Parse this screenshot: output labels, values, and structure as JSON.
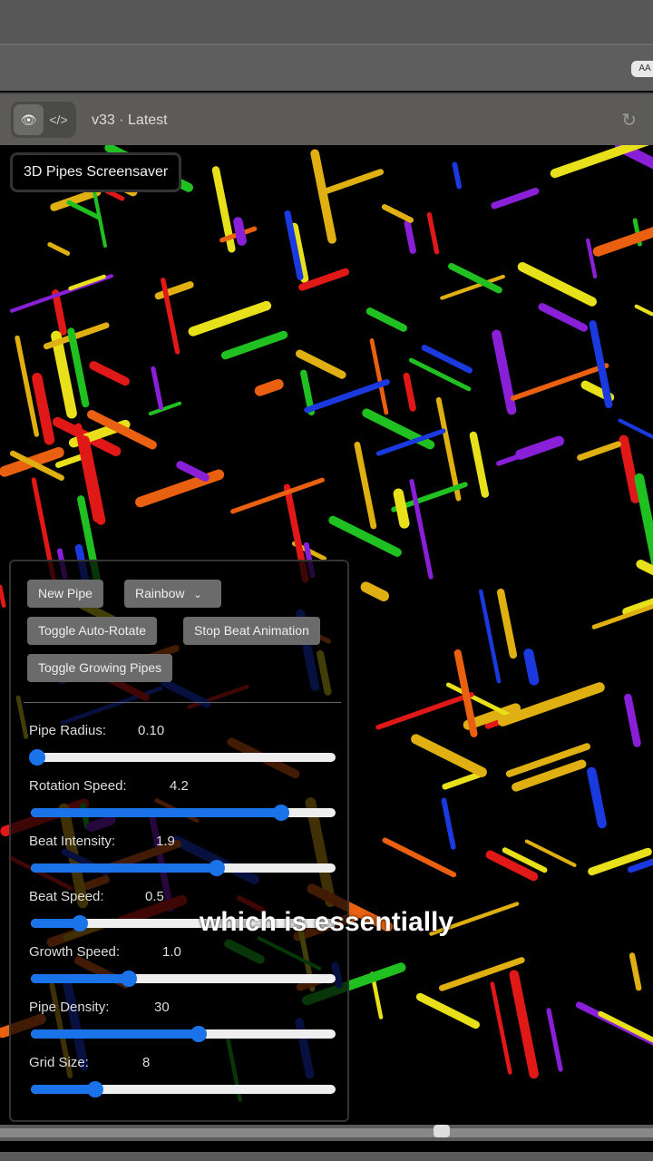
{
  "browser": {
    "badge": "AA"
  },
  "toolbar": {
    "preview_icon": "eye-icon",
    "code_icon": "code-icon",
    "version": "v33 · Latest",
    "refresh_icon": "refresh-icon"
  },
  "app": {
    "title": "3D Pipes Screensaver",
    "buttons": {
      "new_pipe": "New Pipe",
      "color_mode": "Rainbow",
      "toggle_auto_rotate": "Toggle Auto-Rotate",
      "stop_beat": "Stop Beat Animation",
      "toggle_growing": "Toggle Growing Pipes"
    },
    "sliders": [
      {
        "label": "Pipe Radius:",
        "value": "0.10",
        "fill_percent": 2
      },
      {
        "label": "Rotation Speed:",
        "value": "4.2",
        "fill_percent": 82
      },
      {
        "label": "Beat Intensity:",
        "value": "1.9",
        "fill_percent": 61
      },
      {
        "label": "Beat Speed:",
        "value": "0.5",
        "fill_percent": 16
      },
      {
        "label": "Growth Speed:",
        "value": "1.0",
        "fill_percent": 32
      },
      {
        "label": "Pipe Density:",
        "value": "30",
        "fill_percent": 55
      },
      {
        "label": "Grid Size:",
        "value": "8",
        "fill_percent": 21
      }
    ],
    "accent_color": "#1a73e8",
    "pipe_colors": [
      "#e8e01a",
      "#e0b012",
      "#8a1fd8",
      "#e01818",
      "#e86010",
      "#20c020",
      "#1a3ae0"
    ]
  },
  "caption": "which is essentially"
}
